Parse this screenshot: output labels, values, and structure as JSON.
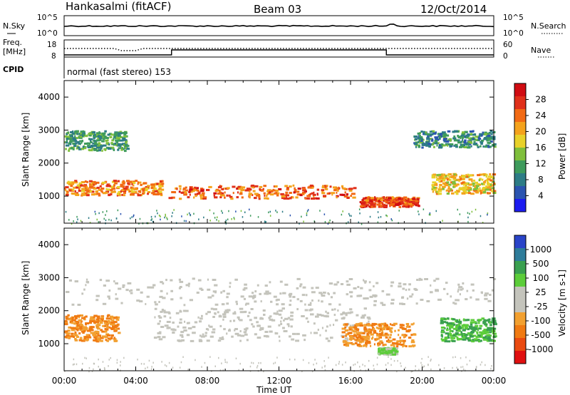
{
  "header": {
    "station": "Hankasalmi (fitACF)",
    "beam": "Beam 03",
    "date": "12/Oct/2014"
  },
  "noise_panel": {
    "left_label": "N.Sky",
    "right_label": "N.Search",
    "left_ticks": [
      "10^5",
      "10^0"
    ],
    "right_ticks": [
      "10^5",
      "10^0"
    ]
  },
  "freq_panel": {
    "left_label_1": "Freq.",
    "left_label_2": "[MHz]",
    "left_ticks": [
      "18",
      "8"
    ],
    "right_label": "Nave",
    "right_ticks": [
      "60",
      "0"
    ],
    "cpid_label": "CPID",
    "cpid_text": "normal (fast stereo) 153"
  },
  "chart_data": [
    {
      "type": "heatmap",
      "title": "",
      "quantity": "Power",
      "xlabel": "",
      "ylabel": "Slant Range [km]",
      "xlim_hours": [
        0,
        24
      ],
      "ylim_km": [
        180,
        4500
      ],
      "y_ticks": [
        "1000",
        "2000",
        "3000",
        "4000"
      ],
      "colorbar": {
        "label": "Power [dB]",
        "ticks": [
          "4",
          "8",
          "12",
          "16",
          "20",
          "24",
          "28"
        ],
        "colors": [
          "#1c1cf0",
          "#2b54b0",
          "#2d7c86",
          "#3e9b5c",
          "#7fbf3c",
          "#e8d12a",
          "#f4a21c",
          "#f26a14",
          "#e0301a",
          "#d00c12"
        ]
      },
      "bands": [
        {
          "t": [
            0,
            5.5
          ],
          "range_km": [
            1050,
            1500
          ],
          "db": 22
        },
        {
          "t": [
            5.8,
            16.2
          ],
          "range_km": [
            950,
            1350
          ],
          "db": 24
        },
        {
          "t": [
            0,
            3.5
          ],
          "range_km": [
            2400,
            3000
          ],
          "db": 10
        },
        {
          "t": [
            19.5,
            24
          ],
          "range_km": [
            2500,
            3000
          ],
          "db": 8
        },
        {
          "t": [
            16.5,
            19.8
          ],
          "range_km": [
            700,
            1000
          ],
          "db": 26
        },
        {
          "t": [
            20.5,
            24
          ],
          "range_km": [
            1100,
            1700
          ],
          "db": 18
        }
      ]
    },
    {
      "type": "heatmap",
      "title": "",
      "quantity": "Velocity",
      "xlabel": "Time UT",
      "ylabel": "Slant Range [km]",
      "xlim_hours": [
        0,
        24
      ],
      "ylim_km": [
        180,
        4500
      ],
      "x_ticks": [
        "00:00",
        "04:00",
        "08:00",
        "12:00",
        "16:00",
        "20:00",
        "00:00"
      ],
      "y_ticks": [
        "1000",
        "2000",
        "3000",
        "4000"
      ],
      "colorbar": {
        "label": "Velocity [m s-1]",
        "ticks": [
          "1000",
          "500",
          "100",
          "25",
          "-25",
          "-100",
          "-500",
          "-1000"
        ],
        "colors": [
          "#2a44c8",
          "#2e7c9a",
          "#3aa050",
          "#5ccd3a",
          "#c4c4bc",
          "#c4c4bc",
          "#f2a030",
          "#f07a12",
          "#ea4a10",
          "#e01010"
        ]
      },
      "bands": [
        {
          "t": [
            0,
            24
          ],
          "range_km": [
            2200,
            3000
          ],
          "v": 0
        },
        {
          "t": [
            5,
            17
          ],
          "range_km": [
            1100,
            2100
          ],
          "v": 0
        },
        {
          "t": [
            0,
            3
          ],
          "range_km": [
            1100,
            1900
          ],
          "v": -300
        },
        {
          "t": [
            15.5,
            19.5
          ],
          "range_km": [
            950,
            1650
          ],
          "v": -300
        },
        {
          "t": [
            17.5,
            18.5
          ],
          "range_km": [
            700,
            900
          ],
          "v": 100
        },
        {
          "t": [
            21,
            24
          ],
          "range_km": [
            1100,
            1800
          ],
          "v": 300
        }
      ]
    }
  ]
}
